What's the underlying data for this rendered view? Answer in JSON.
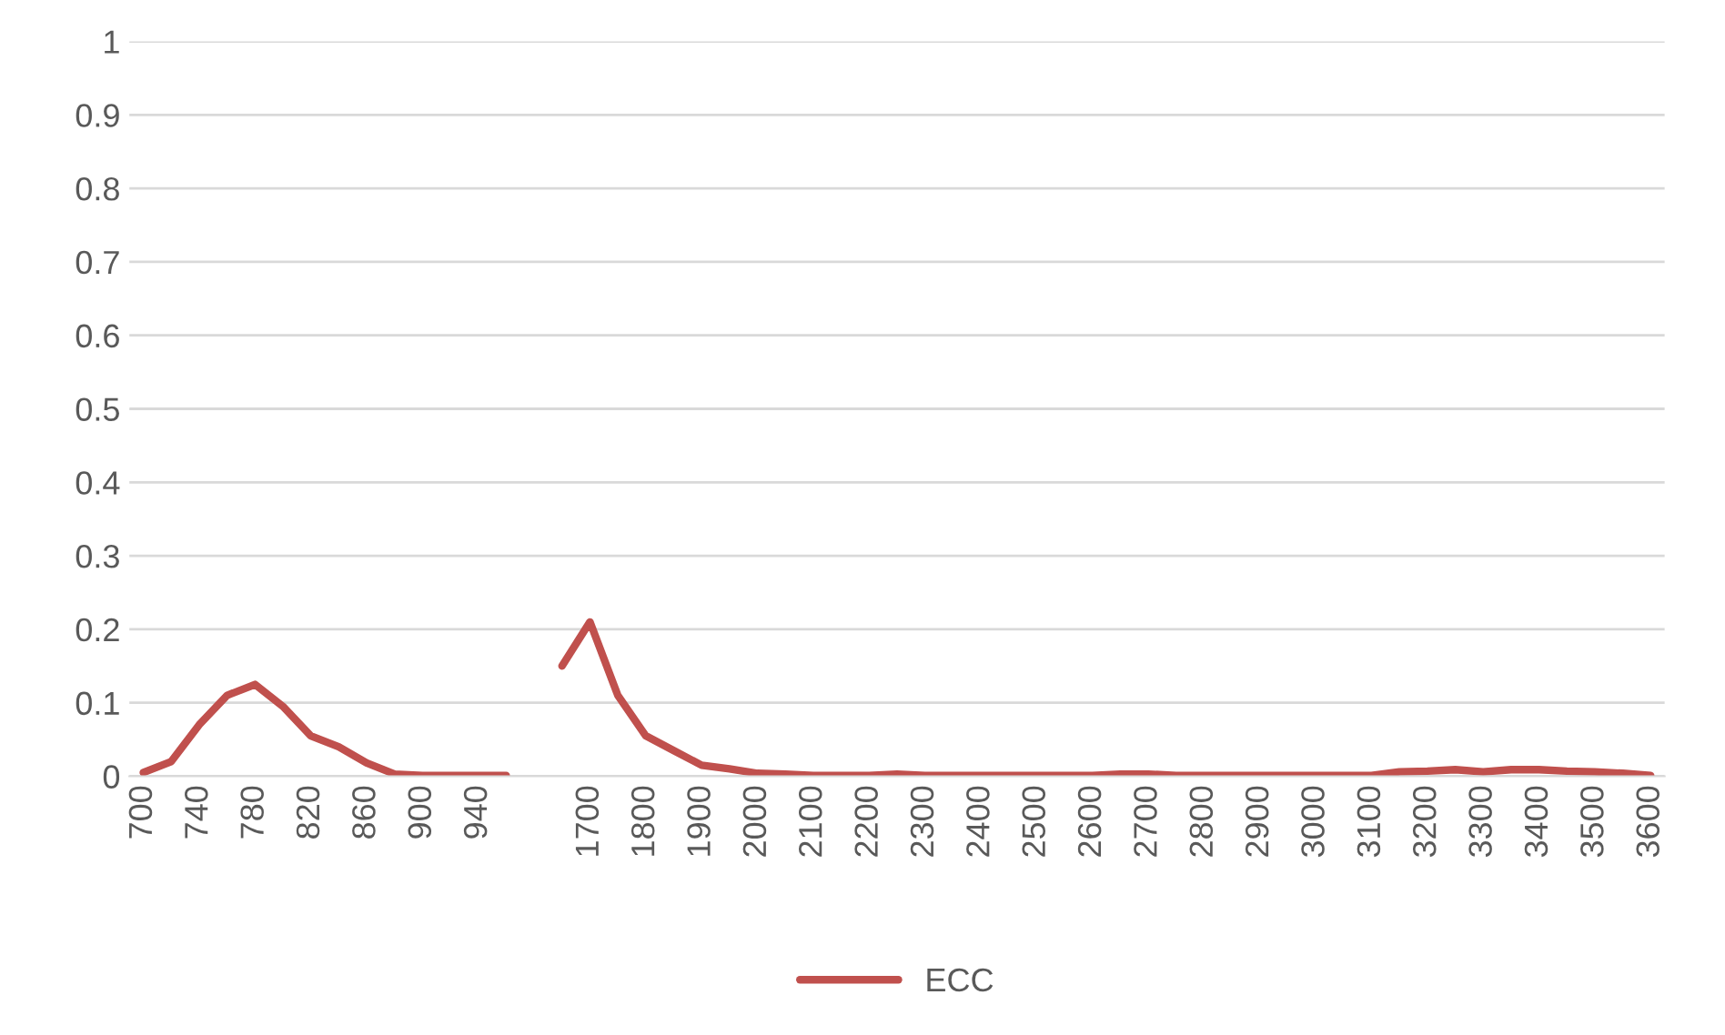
{
  "chart_data": {
    "type": "line",
    "categories": [
      "700",
      null,
      "740",
      null,
      "780",
      null,
      "820",
      null,
      "860",
      null,
      "900",
      null,
      "940",
      null,
      null,
      null,
      "1700",
      null,
      "1800",
      null,
      "1900",
      null,
      "2000",
      null,
      "2100",
      null,
      "2200",
      null,
      "2300",
      null,
      "2400",
      null,
      "2500",
      null,
      "2600",
      null,
      "2700",
      null,
      "2800",
      null,
      "2900",
      null,
      "3000",
      null,
      "3100",
      null,
      "3200",
      null,
      "3300",
      null,
      "3400",
      null,
      "3500",
      null,
      "3600"
    ],
    "series": [
      {
        "name": "ECC",
        "color": "#c0504d",
        "values": [
          0.005,
          0.02,
          0.07,
          0.11,
          0.125,
          0.095,
          0.055,
          0.04,
          0.018,
          0.003,
          0.001,
          0.001,
          0.001,
          0.001,
          null,
          0.15,
          0.21,
          0.11,
          0.055,
          0.035,
          0.015,
          0.01,
          0.004,
          0.003,
          0.001,
          0.001,
          0.001,
          0.003,
          0.001,
          0.001,
          0.001,
          0.001,
          0.001,
          0.001,
          0.001,
          0.003,
          0.003,
          0.001,
          0.001,
          0.001,
          0.001,
          0.001,
          0.001,
          0.001,
          0.001,
          0.006,
          0.007,
          0.009,
          0.006,
          0.009,
          0.009,
          0.007,
          0.006,
          0.004,
          0.001
        ]
      }
    ],
    "ylim": [
      0,
      1
    ],
    "yticks": [
      0,
      0.1,
      0.2,
      0.3,
      0.4,
      0.5,
      0.6,
      0.7,
      0.8,
      0.9,
      1
    ],
    "grid": "y",
    "legend": "bottom",
    "marker": "none",
    "line_style": "solid"
  }
}
